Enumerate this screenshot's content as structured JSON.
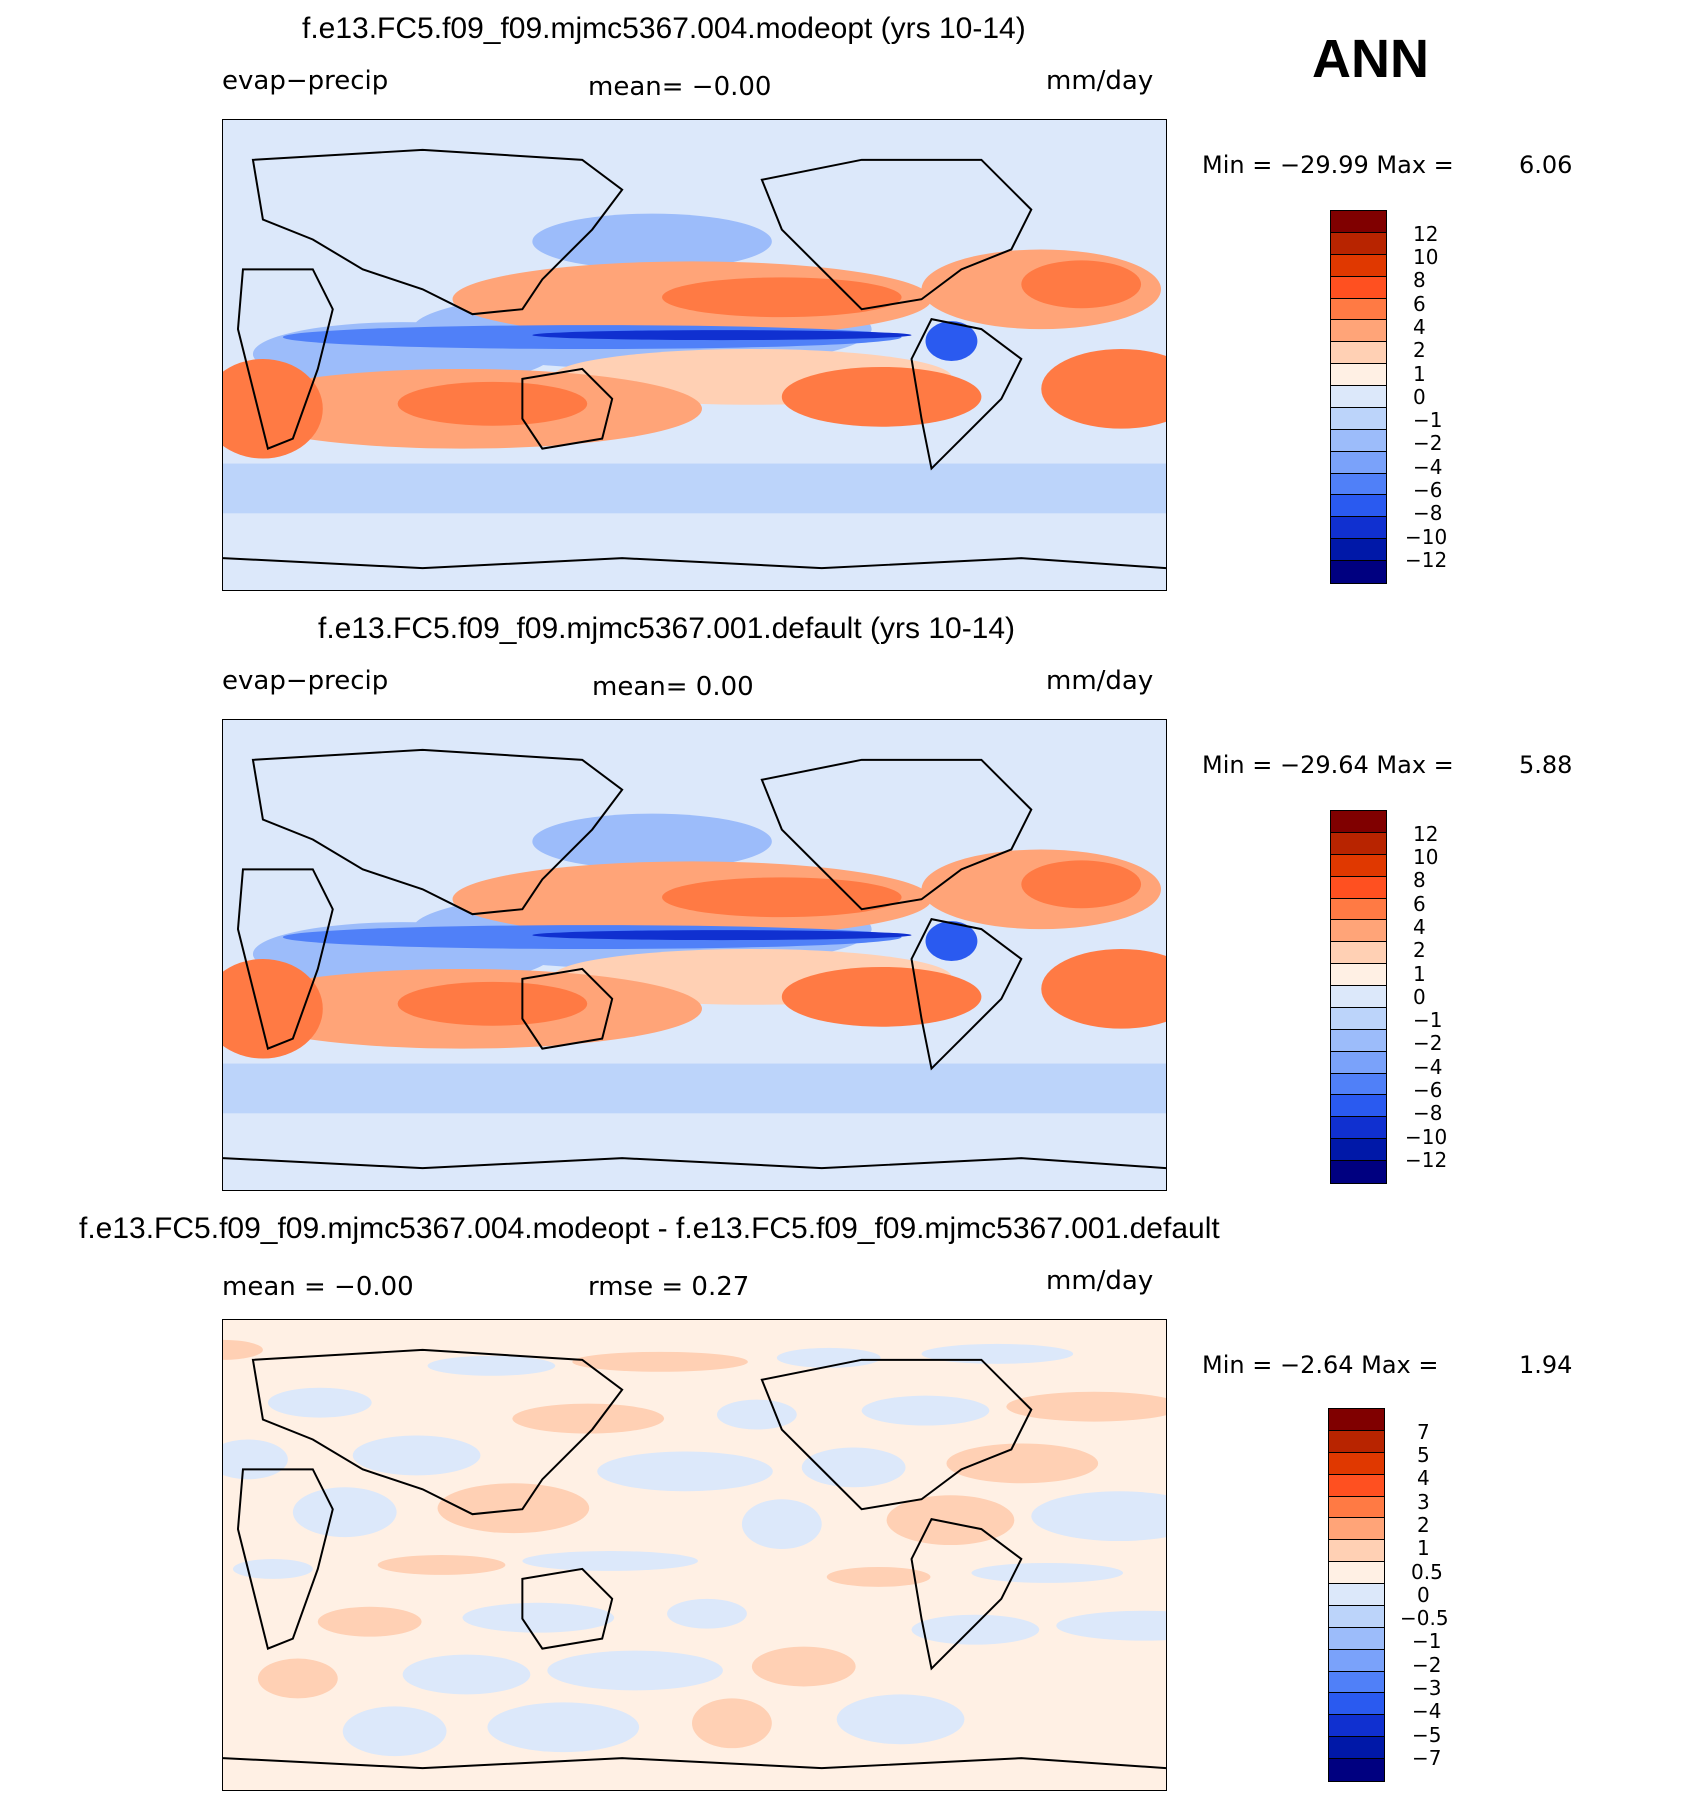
{
  "season": "ANN",
  "colors": {
    "warm": [
      "#800000",
      "#b82400",
      "#e03800",
      "#ff5020",
      "#ff7a44",
      "#ffa478",
      "#ffd0b4",
      "#fff0e4"
    ],
    "cool": [
      "#dce8fa",
      "#bcd4fa",
      "#9cbcfa",
      "#7aa2fa",
      "#5080f8",
      "#2a5af0",
      "#1030d0",
      "#0018a8",
      "#000080"
    ],
    "coast": "#000000"
  },
  "panels": [
    {
      "title": "f.e13.FC5.f09_f09.mjmc5367.004.modeopt (yrs 10-14)",
      "left": "evap−precip",
      "center": "mean=   −0.00",
      "units": "mm/day",
      "min_label": "Min  =  −29.99  Max  =",
      "max_value": "6.06",
      "levels": [
        "12",
        "10",
        "8",
        "6",
        "4",
        "2",
        "1",
        "0",
        "−1",
        "−2",
        "−4",
        "−6",
        "−8",
        "−10",
        "−12"
      ]
    },
    {
      "title": "f.e13.FC5.f09_f09.mjmc5367.001.default (yrs 10-14)",
      "left": "evap−precip",
      "center": "mean=    0.00",
      "units": "mm/day",
      "min_label": "Min  =  −29.64  Max  =",
      "max_value": "5.88",
      "levels": [
        "12",
        "10",
        "8",
        "6",
        "4",
        "2",
        "1",
        "0",
        "−1",
        "−2",
        "−4",
        "−6",
        "−8",
        "−10",
        "−12"
      ]
    },
    {
      "title": "f.e13.FC5.f09_f09.mjmc5367.004.modeopt - f.e13.FC5.f09_f09.mjmc5367.001.default",
      "left": "mean  =    −0.00",
      "center": "rmse  =     0.27",
      "units": "mm/day",
      "min_label": "Min  =    −2.64  Max  =",
      "max_value": "1.94",
      "levels": [
        "7",
        "5",
        "4",
        "3",
        "2",
        "1",
        "0.5",
        "0",
        "−0.5",
        "−1",
        "−2",
        "−3",
        "−4",
        "−5",
        "−7"
      ]
    }
  ],
  "chart_data": [
    {
      "type": "heatmap",
      "title": "f.e13.FC5.f09_f09.mjmc5367.004.modeopt (yrs 10-14)",
      "variable": "evap−precip",
      "units": "mm/day",
      "mean": -0.0,
      "min": -29.99,
      "max": 6.06,
      "contour_levels": [
        -12,
        -10,
        -8,
        -6,
        -4,
        -2,
        -1,
        0,
        1,
        2,
        4,
        6,
        8,
        10,
        12
      ]
    },
    {
      "type": "heatmap",
      "title": "f.e13.FC5.f09_f09.mjmc5367.001.default (yrs 10-14)",
      "variable": "evap−precip",
      "units": "mm/day",
      "mean": 0.0,
      "min": -29.64,
      "max": 5.88,
      "contour_levels": [
        -12,
        -10,
        -8,
        -6,
        -4,
        -2,
        -1,
        0,
        1,
        2,
        4,
        6,
        8,
        10,
        12
      ]
    },
    {
      "type": "heatmap",
      "title": "f.e13.FC5.f09_f09.mjmc5367.004.modeopt - f.e13.FC5.f09_f09.mjmc5367.001.default",
      "units": "mm/day",
      "mean": -0.0,
      "rmse": 0.27,
      "min": -2.64,
      "max": 1.94,
      "contour_levels": [
        -7,
        -5,
        -4,
        -3,
        -2,
        -1,
        -0.5,
        0,
        0.5,
        1,
        2,
        3,
        4,
        5,
        7
      ]
    }
  ]
}
